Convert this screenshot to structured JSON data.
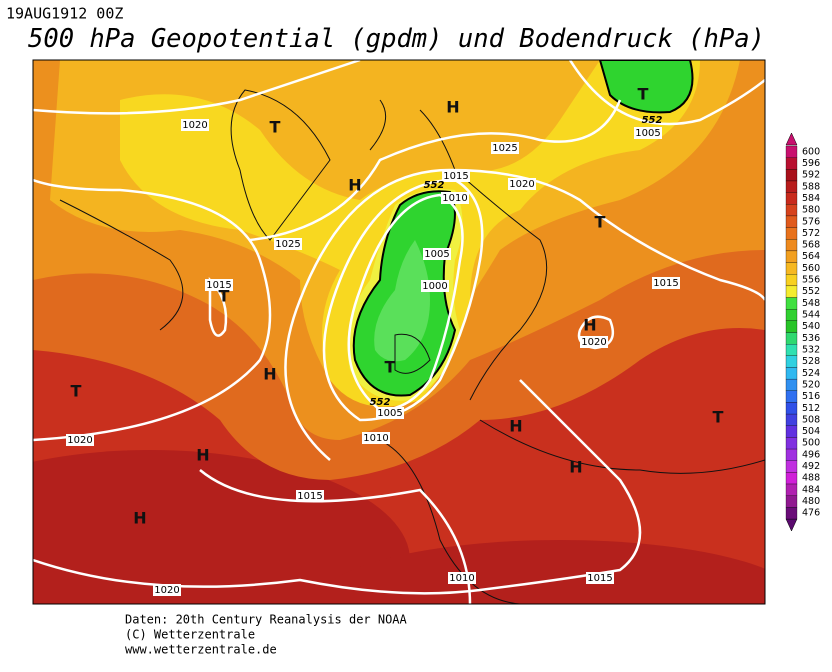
{
  "header": {
    "date": "19AUG1912 00Z",
    "title": "500 hPa Geopotential (gpdm) und Bodendruck (hPa)"
  },
  "map": {
    "isobar_labels": [
      "1020",
      "1025",
      "1015",
      "1020",
      "1010",
      "1025",
      "1005",
      "1000",
      "1015",
      "1015",
      "1020",
      "1005",
      "1010",
      "1020",
      "1015",
      "1020",
      "1010",
      "1015",
      "1005"
    ],
    "contour_labels": [
      "552",
      "552",
      "552"
    ],
    "centers": [
      "T",
      "H",
      "T",
      "H",
      "T",
      "T",
      "H",
      "H",
      "T",
      "T",
      "H",
      "T",
      "H",
      "H",
      "H"
    ]
  },
  "colorbar": {
    "labels": [
      "600",
      "596",
      "592",
      "588",
      "584",
      "580",
      "576",
      "572",
      "568",
      "564",
      "560",
      "556",
      "552",
      "548",
      "544",
      "540",
      "536",
      "532",
      "528",
      "524",
      "520",
      "516",
      "512",
      "508",
      "504",
      "500",
      "496",
      "492",
      "488",
      "484",
      "480",
      "476"
    ]
  },
  "footer": {
    "lines": [
      "Daten: 20th Century Reanalysis der NOAA",
      "(C) Wetterzentrale",
      "www.wetterzentrale.de"
    ]
  }
}
